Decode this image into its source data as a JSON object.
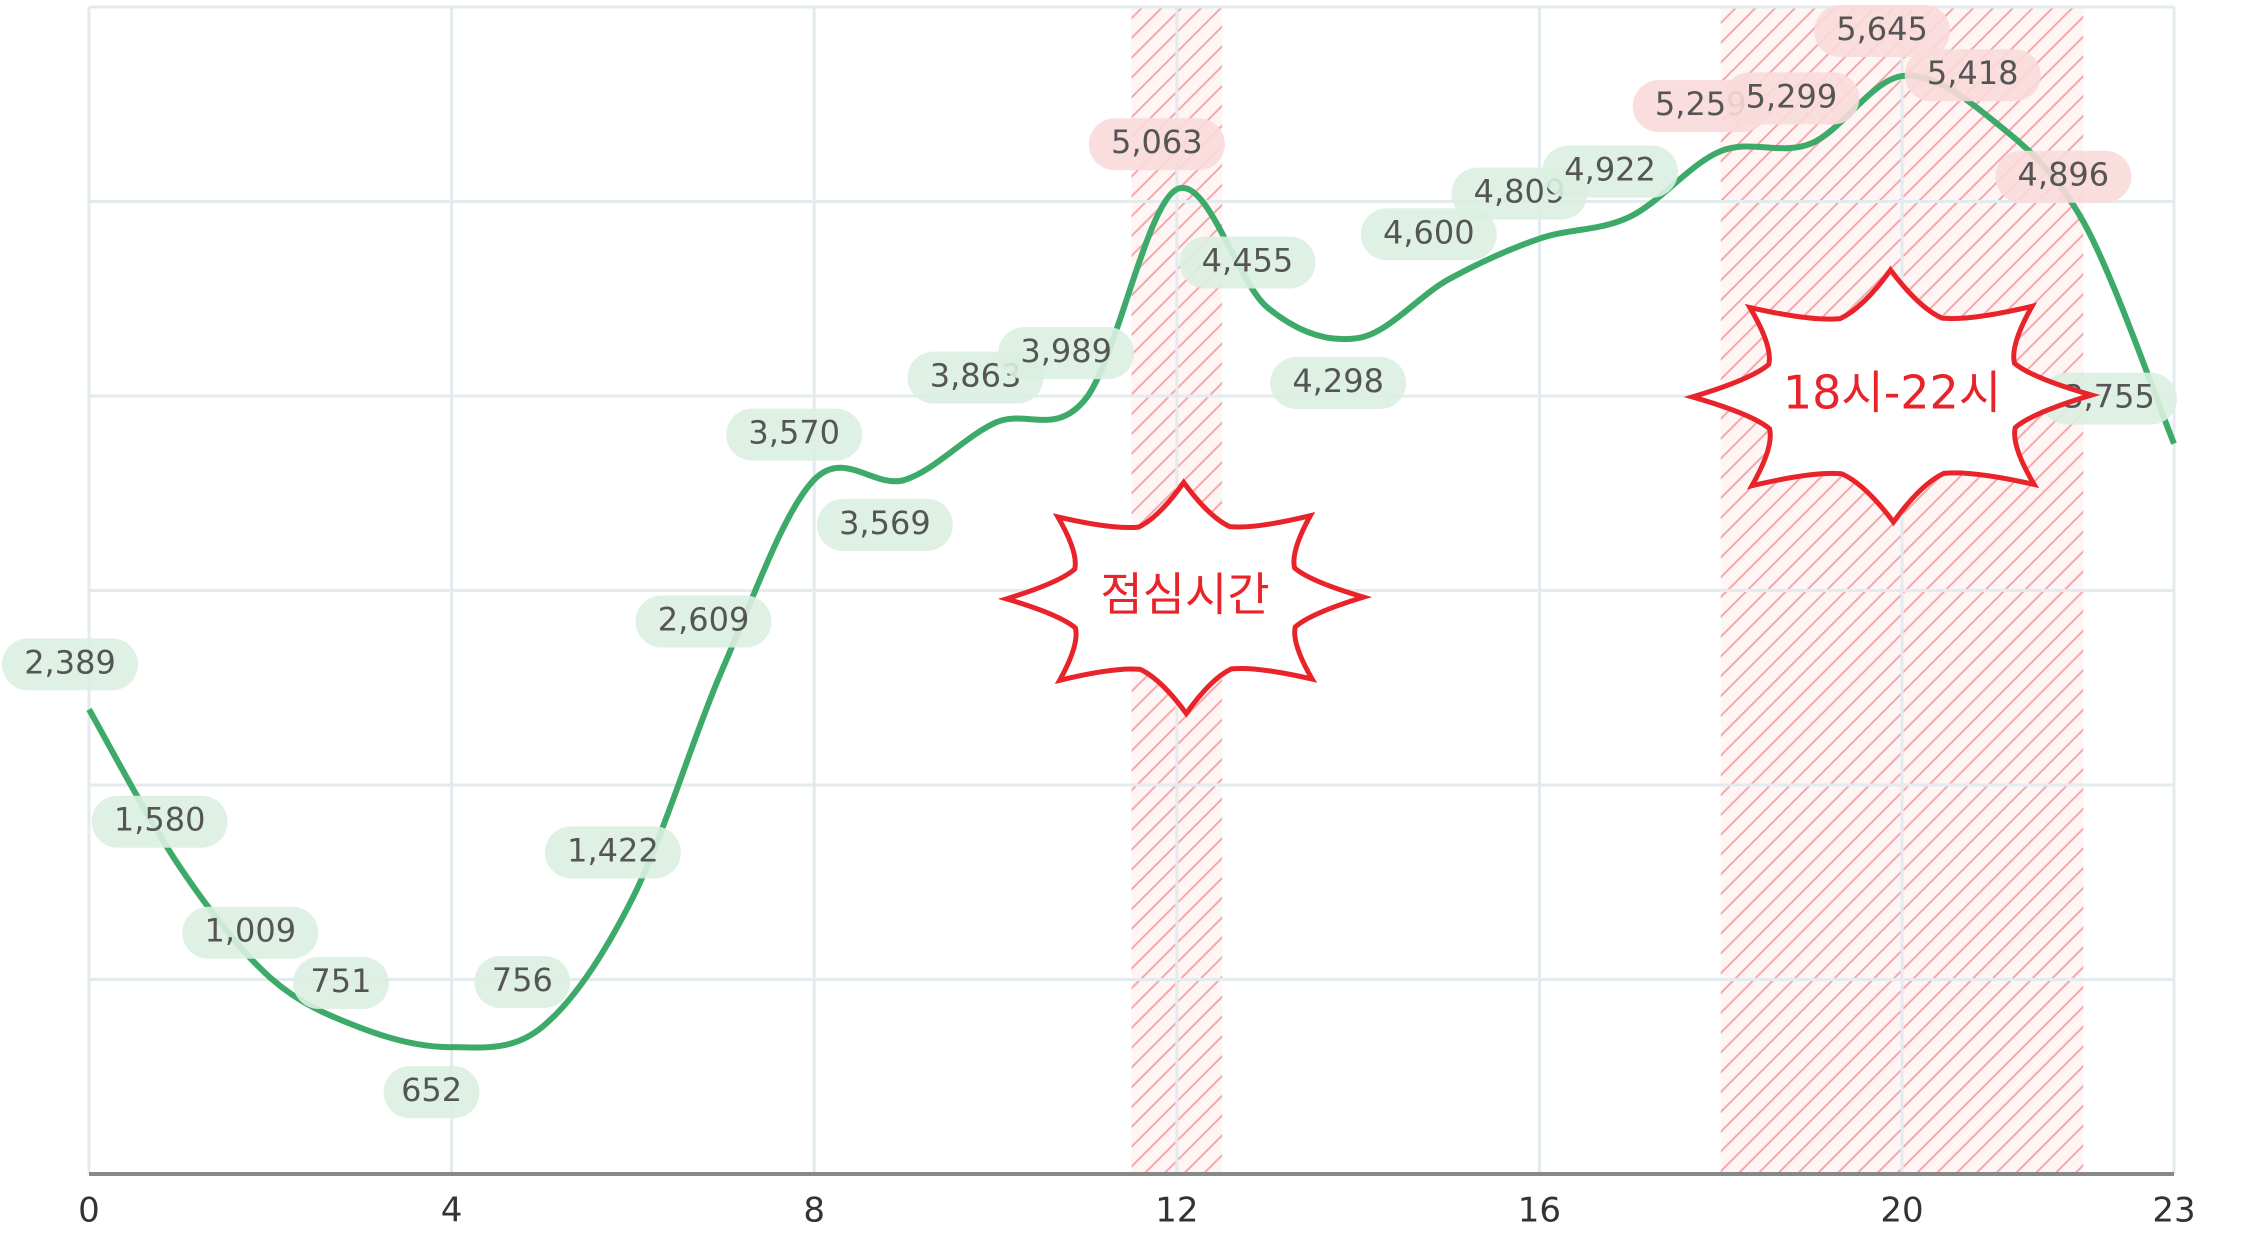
{
  "chart_data": {
    "type": "line",
    "x": [
      0,
      1,
      2,
      3,
      4,
      5,
      6,
      7,
      8,
      9,
      10,
      11,
      12,
      13,
      14,
      15,
      16,
      17,
      18,
      19,
      20,
      21,
      22,
      23
    ],
    "series": [
      {
        "color": "#3daa6a",
        "values": [
          2389,
          1580,
          1009,
          751,
          652,
          756,
          1422,
          2609,
          3570,
          3569,
          3863,
          3989,
          5063,
          4455,
          4298,
          4600,
          4809,
          4922,
          5259,
          5299,
          5645,
          5418,
          4896,
          3755
        ],
        "value_labels": [
          "2,389",
          "1,580",
          "1,009",
          "751",
          "652",
          "756",
          "1,422",
          "2,609",
          "3,570",
          "3,569",
          "3,863",
          "3,989",
          "5,063",
          "4,455",
          "4,298",
          "4,600",
          "4,809",
          "4,922",
          "5,259",
          "5,299",
          "5,645",
          "5,418",
          "4,896",
          "3,755"
        ]
      }
    ],
    "xlim": [
      0,
      23
    ],
    "xticks": [
      0,
      4,
      8,
      12,
      16,
      20,
      23
    ],
    "ylim": [
      0,
      6000
    ],
    "yticks": [
      0,
      1000,
      2000,
      3000,
      4000,
      5000,
      6000
    ],
    "grid": true,
    "highlights": [
      {
        "xlim": [
          11.5,
          12.5
        ],
        "label": "점심시간",
        "color": "#e8242a"
      },
      {
        "xlim": [
          18,
          22
        ],
        "label": "18시-22시",
        "color": "#e8242a"
      }
    ]
  }
}
